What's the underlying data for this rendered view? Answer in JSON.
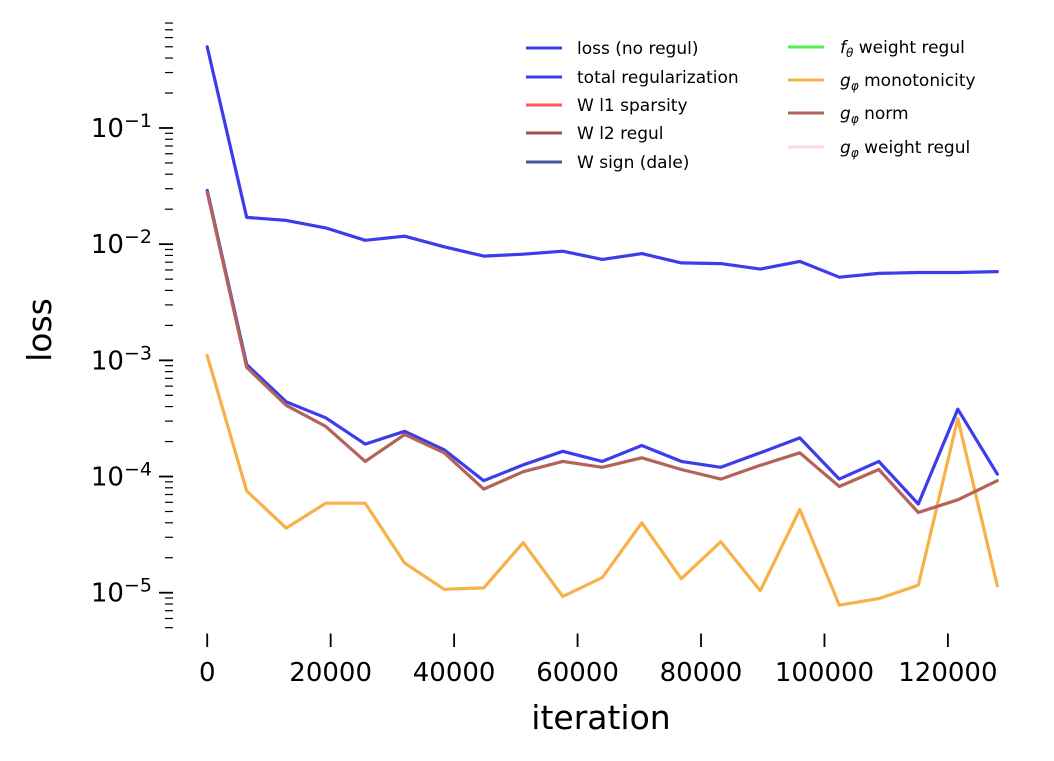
{
  "figure": {
    "background": "#ffffff",
    "text_color": "#000000"
  },
  "chart_data": {
    "type": "line",
    "title": "",
    "xlabel": "iteration",
    "ylabel": "loss",
    "xscale": "linear",
    "yscale": "log",
    "grid": false,
    "xlim": [
      -3600,
      133300
    ],
    "ylim": [
      4.5e-06,
      0.85
    ],
    "x_ticks": [
      0,
      20000,
      40000,
      60000,
      80000,
      100000,
      120000
    ],
    "y_tick_exponents": [
      -1,
      -2,
      -3,
      -4,
      -5
    ],
    "legend_position": "upper center, two columns, frameless",
    "x": [
      0,
      6400,
      12800,
      19200,
      25600,
      32000,
      38400,
      44800,
      51200,
      57600,
      64000,
      70400,
      76800,
      83200,
      89600,
      96000,
      102400,
      108800,
      115200,
      121600,
      128000
    ],
    "series": [
      {
        "name": "loss (no regul)",
        "color": "#3c3cec",
        "visible": true,
        "values": [
          0.5,
          0.017,
          0.016,
          0.0138,
          0.0108,
          0.0117,
          0.0095,
          0.0079,
          0.0082,
          0.0087,
          0.0074,
          0.0083,
          0.0069,
          0.0068,
          0.0061,
          0.0071,
          0.0052,
          0.0056,
          0.0057,
          0.0057,
          0.0058
        ]
      },
      {
        "name": "total regularization",
        "color": "#3c3cec",
        "visible": true,
        "values": [
          0.029,
          0.00092,
          0.00044,
          0.00032,
          0.00019,
          0.000245,
          0.00017,
          9.2e-05,
          0.000126,
          0.000165,
          0.000135,
          0.000185,
          0.000135,
          0.00012,
          0.00016,
          0.000215,
          9.5e-05,
          0.000135,
          5.8e-05,
          0.00038,
          0.000105
        ]
      },
      {
        "name": "W l1 sparsity",
        "color": "#ff5757",
        "visible": false,
        "values": null
      },
      {
        "name": "W l2 regul",
        "color": "#9e5353",
        "visible": false,
        "values": null
      },
      {
        "name": "W sign (dale)",
        "color": "#4a5498",
        "visible": false,
        "values": null
      },
      {
        "name": "fθ weight regul",
        "color": "#4ef04e",
        "visible": false,
        "values": null
      },
      {
        "name": "gφ monotonicity",
        "color": "#f8b048",
        "visible": true,
        "values": [
          0.0011,
          7.5e-05,
          3.6e-05,
          5.9e-05,
          5.9e-05,
          1.8e-05,
          1.07e-05,
          1.1e-05,
          2.7e-05,
          9.3e-06,
          1.35e-05,
          4e-05,
          1.32e-05,
          2.75e-05,
          1.04e-05,
          5.2e-05,
          7.8e-06,
          8.9e-06,
          1.16e-05,
          0.000315,
          1.15e-05
        ]
      },
      {
        "name": "gφ norm",
        "color": "#b36358",
        "visible": true,
        "values": [
          0.028,
          0.00087,
          0.00041,
          0.00027,
          0.000135,
          0.00023,
          0.00016,
          7.8e-05,
          0.00011,
          0.000135,
          0.00012,
          0.000145,
          0.000115,
          9.5e-05,
          0.000125,
          0.00016,
          8.2e-05,
          0.000115,
          4.9e-05,
          6.3e-05,
          9.2e-05
        ]
      },
      {
        "name": "gφ weight regul",
        "color": "#ffd9de",
        "visible": false,
        "values": null
      }
    ],
    "legend": {
      "columns": [
        [
          {
            "label": "loss (no regul)",
            "color": "#3c3cec"
          },
          {
            "label": "total regularization",
            "color": "#3c3cec"
          },
          {
            "label": "W l1 sparsity",
            "color": "#ff5757"
          },
          {
            "label": "W l2 regul",
            "color": "#9e5353"
          },
          {
            "label": "W sign (dale)",
            "color": "#4a5498"
          }
        ],
        [
          {
            "math": "f",
            "sub": "θ",
            "label": "weight regul",
            "color": "#4ef04e"
          },
          {
            "math": "g",
            "sub": "φ",
            "label": "monotonicity",
            "color": "#f8b048"
          },
          {
            "math": "g",
            "sub": "φ",
            "label": "norm",
            "color": "#b36358"
          },
          {
            "math": "g",
            "sub": "φ",
            "label": "weight regul",
            "color": "#ffd9de"
          }
        ]
      ]
    }
  }
}
